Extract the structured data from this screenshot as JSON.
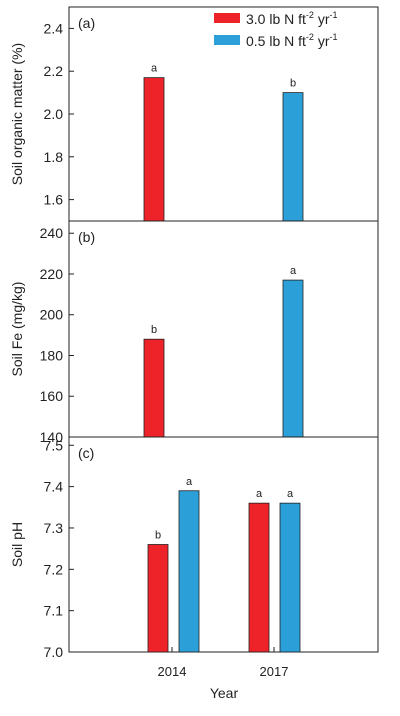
{
  "colors": {
    "series_2014_rate": "#ee2229",
    "series_low_rate": "#2b9fd8",
    "axis": "#222222"
  },
  "legend": {
    "items": [
      {
        "base": "3.0 lb N ft",
        "sup1": "-2",
        "mid": " yr",
        "sup2": "-1",
        "color": "#ee2229"
      },
      {
        "base": "0.5 lb N ft",
        "sup1": "-2",
        "mid": " yr",
        "sup2": "-1",
        "color": "#2b9fd8"
      }
    ]
  },
  "xaxis": {
    "label": "Year",
    "categories": [
      "2014",
      "2017"
    ]
  },
  "chart_data": [
    {
      "type": "bar",
      "panel_label": "(a)",
      "ylabel": "Soil organic matter (%)",
      "ylim": [
        1.5,
        2.5
      ],
      "yticks": [
        "1.6",
        "1.8",
        "2.0",
        "2.2",
        "2.4"
      ],
      "categories": [
        "2014",
        "2017"
      ],
      "series": [
        {
          "name": "3.0 lb N ft-2 yr-1",
          "values": [
            2.17,
            null
          ],
          "labels": [
            "a",
            null
          ]
        },
        {
          "name": "0.5 lb N ft-2 yr-1",
          "values": [
            null,
            2.1
          ],
          "labels": [
            null,
            "b"
          ]
        }
      ],
      "grid": false,
      "legend": "top-right"
    },
    {
      "type": "bar",
      "panel_label": "(b)",
      "ylabel": "Soil Fe  (mg/kg)",
      "ylim": [
        140,
        246
      ],
      "yticks": [
        "140",
        "160",
        "180",
        "200",
        "220",
        "240"
      ],
      "categories": [
        "2014",
        "2017"
      ],
      "series": [
        {
          "name": "3.0 lb N ft-2 yr-1",
          "values": [
            188,
            null
          ],
          "labels": [
            "b",
            null
          ]
        },
        {
          "name": "0.5 lb N ft-2 yr-1",
          "values": [
            null,
            217
          ],
          "labels": [
            null,
            "a"
          ]
        }
      ],
      "grid": false
    },
    {
      "type": "bar",
      "panel_label": "(c)",
      "ylabel": "Soil pH",
      "ylim": [
        7.0,
        7.52
      ],
      "yticks": [
        "7.0",
        "7.1",
        "7.2",
        "7.3",
        "7.4",
        "7.5"
      ],
      "categories": [
        "2014",
        "2017"
      ],
      "series": [
        {
          "name": "3.0 lb N ft-2 yr-1",
          "values": [
            7.26,
            7.36
          ],
          "labels": [
            "b",
            "a"
          ]
        },
        {
          "name": "0.5 lb N ft-2 yr-1",
          "values": [
            7.39,
            7.36
          ],
          "labels": [
            "a",
            "a"
          ]
        }
      ],
      "grid": false
    }
  ]
}
